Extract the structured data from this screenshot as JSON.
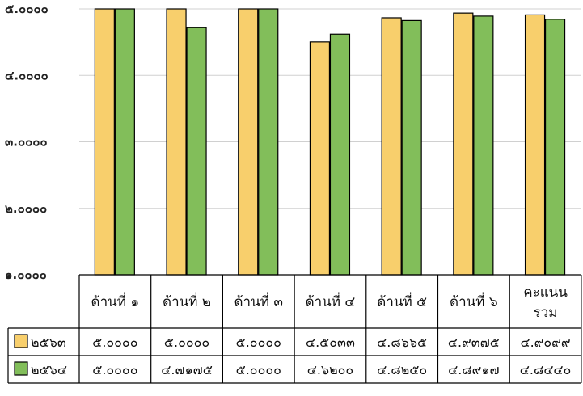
{
  "colors": {
    "series_2563": "#F8CF6C",
    "series_2564": "#82BE5A",
    "border": "#000000",
    "grid": "#d0d0d0"
  },
  "chart_data": {
    "type": "bar",
    "categories": [
      [
        "ด้านที่ ๑"
      ],
      [
        "ด้านที่ ๒"
      ],
      [
        "ด้านที่ ๓"
      ],
      [
        "ด้านที่ ๔"
      ],
      [
        "ด้านที่ ๕"
      ],
      [
        "ด้านที่ ๖"
      ],
      [
        "คะแนน",
        "รวม"
      ]
    ],
    "series": [
      {
        "name": "๒๕๖๓",
        "values": [
          5.0,
          5.0,
          5.0,
          4.5033,
          4.8665,
          4.9375,
          4.9099
        ],
        "labels": [
          "๕.๐๐๐๐",
          "๕.๐๐๐๐",
          "๕.๐๐๐๐",
          "๔.๕๐๓๓",
          "๔.๘๖๖๕",
          "๔.๙๓๗๕",
          "๔.๙๐๙๙"
        ]
      },
      {
        "name": "๒๕๖๔",
        "values": [
          5.0,
          4.7175,
          5.0,
          4.62,
          4.825,
          4.8917,
          4.844
        ],
        "labels": [
          "๕.๐๐๐๐",
          "๔.๗๑๗๕",
          "๕.๐๐๐๐",
          "๔.๖๒๐๐",
          "๔.๘๒๕๐",
          "๔.๘๙๑๗",
          "๔.๘๔๔๐"
        ]
      }
    ],
    "yticks": [
      {
        "value": 1,
        "label": "๑.๐๐๐๐"
      },
      {
        "value": 2,
        "label": "๒.๐๐๐๐"
      },
      {
        "value": 3,
        "label": "๓.๐๐๐๐"
      },
      {
        "value": 4,
        "label": "๔.๐๐๐๐"
      },
      {
        "value": 5,
        "label": "๕.๐๐๐๐"
      }
    ],
    "ylim": [
      1,
      5
    ],
    "grid": true,
    "legend": "in data table"
  }
}
